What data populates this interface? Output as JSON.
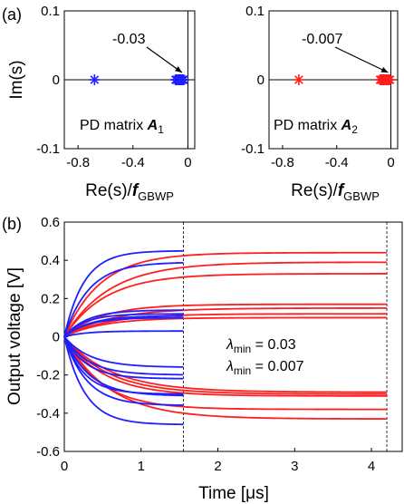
{
  "chart_data": [
    {
      "type": "scatter",
      "panel": "(a)",
      "subplot": "left",
      "ylabel": "Im(s)",
      "xlabel_main": "Re(s)/",
      "xlabel_italic": "f",
      "xlabel_sub": "GBWP",
      "xlim": [
        -0.9,
        0.05
      ],
      "ylim": [
        -0.1,
        0.1
      ],
      "xticks": [
        "-0.8",
        "-0.4",
        "0"
      ],
      "xtick_values": [
        -0.8,
        -0.4,
        0
      ],
      "yticks": [
        "0.1",
        "0",
        "-0.1"
      ],
      "ytick_values": [
        0.1,
        0,
        -0.1
      ],
      "marker_color": "#1f1fff",
      "points_x": [
        -0.68,
        -0.09,
        -0.085,
        -0.08,
        -0.075,
        -0.07,
        -0.065,
        -0.06,
        -0.055,
        -0.05,
        -0.045,
        -0.04,
        -0.035,
        -0.03
      ],
      "points_y": [
        0,
        0,
        0,
        0,
        0,
        0,
        0,
        0,
        0,
        0,
        0,
        0,
        0,
        0
      ],
      "annotation": "-0.03",
      "annotation_target": [
        -0.03,
        0
      ],
      "label_prefix": "PD matrix ",
      "label_bold": "A",
      "label_sub": "1"
    },
    {
      "type": "scatter",
      "subplot": "right",
      "xlabel_main": "Re(s)/",
      "xlabel_italic": "f",
      "xlabel_sub": "GBWP",
      "xlim": [
        -0.9,
        0.05
      ],
      "ylim": [
        -0.1,
        0.1
      ],
      "xticks": [
        "-0.8",
        "-0.4",
        "0"
      ],
      "xtick_values": [
        -0.8,
        -0.4,
        0
      ],
      "yticks": [
        "0.1",
        "0",
        "-0.1"
      ],
      "ytick_values": [
        0.1,
        0,
        -0.1
      ],
      "marker_color": "#ff1f1f",
      "points_x": [
        -0.68,
        -0.08,
        -0.075,
        -0.07,
        -0.065,
        -0.06,
        -0.055,
        -0.05,
        -0.045,
        -0.04,
        -0.035,
        -0.03,
        -0.02,
        -0.01,
        -0.007
      ],
      "points_y": [
        0,
        0,
        0,
        0,
        0,
        0,
        0,
        0,
        0,
        0,
        0,
        0,
        0,
        0,
        0
      ],
      "annotation": "-0.007",
      "annotation_target": [
        -0.007,
        0
      ],
      "label_prefix": "PD matrix ",
      "label_bold": "A",
      "label_sub": "2"
    },
    {
      "type": "line",
      "panel": "(b)",
      "ylabel": "Output voltage [V]",
      "xlabel": "Time [μs]",
      "xlim": [
        0,
        4.4
      ],
      "ylim": [
        -0.6,
        0.6
      ],
      "xticks": [
        "0",
        "1",
        "2",
        "3",
        "4"
      ],
      "xtick_values": [
        0,
        1,
        2,
        3,
        4
      ],
      "yticks": [
        "0.6",
        "0.4",
        "0.2",
        "0",
        "-0.2",
        "-0.4",
        "-0.6"
      ],
      "ytick_values": [
        0.6,
        0.4,
        0.2,
        0,
        -0.2,
        -0.4,
        -0.6
      ],
      "vlines": [
        1.55,
        4.2
      ],
      "legend": [
        {
          "symbol": "λ",
          "sub": "min",
          "text": " = 0.03",
          "color": "#1f1fff"
        },
        {
          "symbol": "λ",
          "sub": "min",
          "text": " = 0.007",
          "color": "#ff1f1f"
        }
      ],
      "blue_series": {
        "color": "#1f1fff",
        "t_end": 1.55,
        "finals": [
          0.45,
          0.39,
          0.14,
          0.12,
          0.11,
          0.1,
          0.03,
          -0.16,
          -0.2,
          -0.22,
          -0.3,
          -0.31,
          -0.36,
          -0.46
        ],
        "tau": 0.3
      },
      "red_series": {
        "color": "#ff1f1f",
        "t_end": 4.2,
        "finals": [
          0.44,
          0.39,
          0.33,
          0.17,
          0.15,
          0.12,
          0.1,
          -0.29,
          -0.3,
          -0.31,
          -0.38,
          -0.43
        ],
        "tau": 0.55
      }
    }
  ],
  "labels": {
    "panel_a": "(a)",
    "panel_b": "(b)"
  }
}
